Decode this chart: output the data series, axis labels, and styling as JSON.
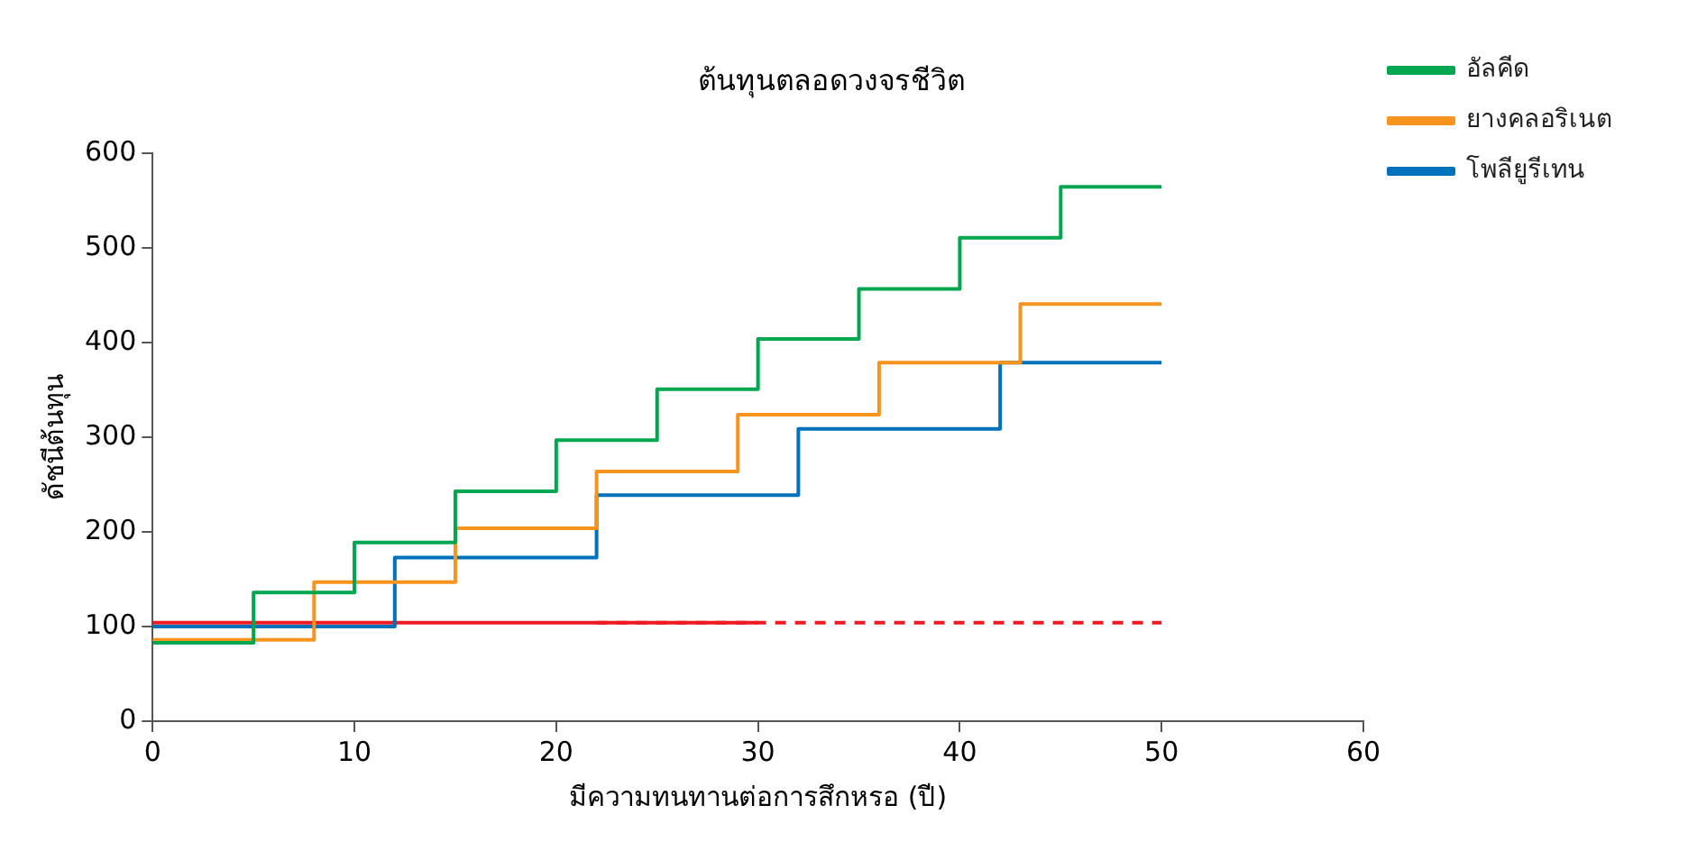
{
  "chart_data": {
    "type": "step",
    "title": "ต้นทุนตลอดวงจรชีวิต",
    "xlabel": "มีความทนทานต่อการสึกหรอ (ปี)",
    "ylabel": "ดัชนีต้นทุน",
    "xlim": [
      0,
      60
    ],
    "xticks": [
      0,
      10,
      20,
      30,
      40,
      50,
      60
    ],
    "ylim": [
      0,
      600
    ],
    "yticks": [
      0,
      100,
      200,
      300,
      400,
      500,
      600
    ],
    "grid": false,
    "legend": "top right",
    "line_style": "solid",
    "series": [
      {
        "name": "อัลคีด",
        "color": "#00a650",
        "x": [
          0,
          5,
          10,
          15,
          20,
          25,
          30,
          35,
          40,
          45,
          50
        ],
        "values": [
          83,
          136,
          189,
          243,
          297,
          351,
          404,
          457,
          511,
          565,
          565
        ]
      },
      {
        "name": "ยางคลอริเนต",
        "color": "#f7941d",
        "x": [
          0,
          8,
          15,
          22,
          29,
          36,
          43,
          50
        ],
        "values": [
          86,
          147,
          204,
          264,
          324,
          379,
          441,
          441
        ]
      },
      {
        "name": "โพลียูรีเทน",
        "color": "#0072bc",
        "x": [
          0,
          12,
          22,
          32,
          42,
          50
        ],
        "values": [
          100,
          173,
          239,
          309,
          379,
          379
        ]
      },
      {
        "color": "#ed1c24",
        "x": [
          0,
          30
        ],
        "values": [
          104,
          104
        ]
      },
      {
        "color": "#ed1c24",
        "x": [
          22,
          50
        ],
        "values": [
          104,
          104
        ],
        "line_style": "dashed"
      }
    ]
  }
}
